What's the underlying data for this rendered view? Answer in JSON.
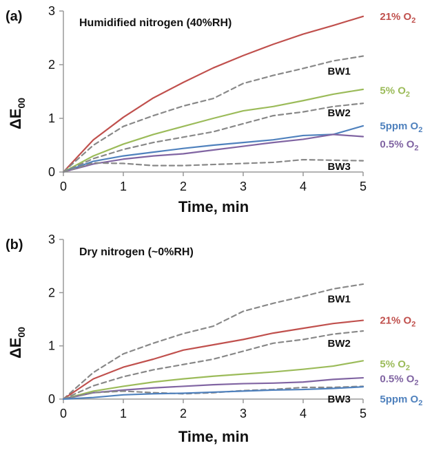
{
  "chart_data": [
    {
      "type": "line",
      "panel_tag": "(a)",
      "title": "Humidified nitrogen (40%RH)",
      "xlabel": "Time, min",
      "ylabel_main": "ΔE",
      "ylabel_sub": "00",
      "xlim": [
        0,
        5
      ],
      "ylim": [
        0,
        3
      ],
      "xticks": [
        "0",
        "1",
        "2",
        "3",
        "4",
        "5"
      ],
      "yticks": [
        "0",
        "1",
        "2",
        "3"
      ],
      "grid": false,
      "series": [
        {
          "label_main": "21% O",
          "label_sub": "2",
          "color": "#c0504d",
          "dash": false,
          "x": [
            0,
            0.5,
            1,
            1.5,
            2,
            2.5,
            3,
            3.5,
            4,
            4.5,
            5
          ],
          "y": [
            0,
            0.6,
            1.02,
            1.38,
            1.67,
            1.94,
            2.17,
            2.38,
            2.57,
            2.73,
            2.9
          ]
        },
        {
          "label_main": "BW1",
          "label_sub": "",
          "color": "#888888",
          "dash": true,
          "x": [
            0,
            0.5,
            1,
            1.5,
            2,
            2.5,
            3,
            3.5,
            4,
            4.5,
            5
          ],
          "y": [
            0,
            0.5,
            0.85,
            1.05,
            1.23,
            1.37,
            1.65,
            1.8,
            1.93,
            2.07,
            2.16
          ]
        },
        {
          "label_main": "5% O",
          "label_sub": "2",
          "color": "#9bbb59",
          "dash": false,
          "x": [
            0,
            0.5,
            1,
            1.5,
            2,
            2.5,
            3,
            3.5,
            4,
            4.5,
            5
          ],
          "y": [
            0,
            0.3,
            0.52,
            0.7,
            0.85,
            1.0,
            1.14,
            1.22,
            1.33,
            1.45,
            1.54
          ]
        },
        {
          "label_main": "BW2",
          "label_sub": "",
          "color": "#888888",
          "dash": true,
          "x": [
            0,
            0.5,
            1,
            1.5,
            2,
            2.5,
            3,
            3.5,
            4,
            4.5,
            5
          ],
          "y": [
            0,
            0.25,
            0.42,
            0.55,
            0.65,
            0.75,
            0.9,
            1.05,
            1.12,
            1.22,
            1.28
          ]
        },
        {
          "label_main": "5ppm O",
          "label_sub": "2",
          "color": "#4f81bd",
          "dash": false,
          "x": [
            0,
            0.5,
            1,
            1.5,
            2,
            2.5,
            3,
            3.5,
            4,
            4.5,
            5
          ],
          "y": [
            0,
            0.2,
            0.3,
            0.37,
            0.44,
            0.5,
            0.55,
            0.6,
            0.68,
            0.7,
            0.86
          ]
        },
        {
          "label_main": "0.5% O",
          "label_sub": "2",
          "color": "#8064a2",
          "dash": false,
          "x": [
            0,
            0.5,
            1,
            1.5,
            2,
            2.5,
            3,
            3.5,
            4,
            4.5,
            5
          ],
          "y": [
            0,
            0.15,
            0.24,
            0.3,
            0.34,
            0.41,
            0.48,
            0.55,
            0.61,
            0.7,
            0.66
          ]
        },
        {
          "label_main": "BW3",
          "label_sub": "",
          "color": "#888888",
          "dash": true,
          "x": [
            0,
            0.5,
            1,
            1.5,
            2,
            2.5,
            3,
            3.5,
            4,
            4.5,
            5
          ],
          "y": [
            0,
            0.17,
            0.16,
            0.12,
            0.12,
            0.14,
            0.16,
            0.18,
            0.23,
            0.22,
            0.21
          ]
        }
      ]
    },
    {
      "type": "line",
      "panel_tag": "(b)",
      "title": "Dry nitrogen  (~0%RH)",
      "xlabel": "Time, min",
      "ylabel_main": "ΔE",
      "ylabel_sub": "00",
      "xlim": [
        0,
        5
      ],
      "ylim": [
        0,
        3
      ],
      "xticks": [
        "0",
        "1",
        "2",
        "3",
        "4",
        "5"
      ],
      "yticks": [
        "0",
        "1",
        "2",
        "3"
      ],
      "grid": false,
      "series": [
        {
          "label_main": "BW1",
          "label_sub": "",
          "color": "#888888",
          "dash": true,
          "x": [
            0,
            0.5,
            1,
            1.5,
            2,
            2.5,
            3,
            3.5,
            4,
            4.5,
            5
          ],
          "y": [
            0,
            0.5,
            0.85,
            1.05,
            1.23,
            1.37,
            1.65,
            1.8,
            1.93,
            2.07,
            2.16
          ]
        },
        {
          "label_main": "21% O",
          "label_sub": "2",
          "color": "#c0504d",
          "dash": false,
          "x": [
            0,
            0.5,
            1,
            1.5,
            2,
            2.5,
            3,
            3.5,
            4,
            4.5,
            5
          ],
          "y": [
            0,
            0.38,
            0.6,
            0.75,
            0.92,
            1.02,
            1.12,
            1.24,
            1.33,
            1.42,
            1.48
          ]
        },
        {
          "label_main": "BW2",
          "label_sub": "",
          "color": "#888888",
          "dash": true,
          "x": [
            0,
            0.5,
            1,
            1.5,
            2,
            2.5,
            3,
            3.5,
            4,
            4.5,
            5
          ],
          "y": [
            0,
            0.25,
            0.42,
            0.55,
            0.65,
            0.75,
            0.9,
            1.05,
            1.12,
            1.22,
            1.28
          ]
        },
        {
          "label_main": "5% O",
          "label_sub": "2",
          "color": "#9bbb59",
          "dash": false,
          "x": [
            0,
            0.5,
            1,
            1.5,
            2,
            2.5,
            3,
            3.5,
            4,
            4.5,
            5
          ],
          "y": [
            0,
            0.15,
            0.24,
            0.32,
            0.38,
            0.43,
            0.47,
            0.51,
            0.56,
            0.62,
            0.72
          ]
        },
        {
          "label_main": "0.5% O",
          "label_sub": "2",
          "color": "#8064a2",
          "dash": false,
          "x": [
            0,
            0.5,
            1,
            1.5,
            2,
            2.5,
            3,
            3.5,
            4,
            4.5,
            5
          ],
          "y": [
            0,
            0.12,
            0.17,
            0.21,
            0.24,
            0.27,
            0.29,
            0.3,
            0.32,
            0.37,
            0.4
          ]
        },
        {
          "label_main": "BW3",
          "label_sub": "",
          "color": "#888888",
          "dash": true,
          "x": [
            0,
            0.5,
            1,
            1.5,
            2,
            2.5,
            3,
            3.5,
            4,
            4.5,
            5
          ],
          "y": [
            0,
            0.12,
            0.15,
            0.12,
            0.1,
            0.12,
            0.16,
            0.18,
            0.22,
            0.22,
            0.24
          ]
        },
        {
          "label_main": "5ppm O",
          "label_sub": "2",
          "color": "#4f81bd",
          "dash": false,
          "x": [
            0,
            0.5,
            1,
            1.5,
            2,
            2.5,
            3,
            3.5,
            4,
            4.5,
            5
          ],
          "y": [
            0,
            0.03,
            0.08,
            0.1,
            0.11,
            0.13,
            0.15,
            0.17,
            0.18,
            0.2,
            0.23
          ]
        }
      ]
    }
  ]
}
